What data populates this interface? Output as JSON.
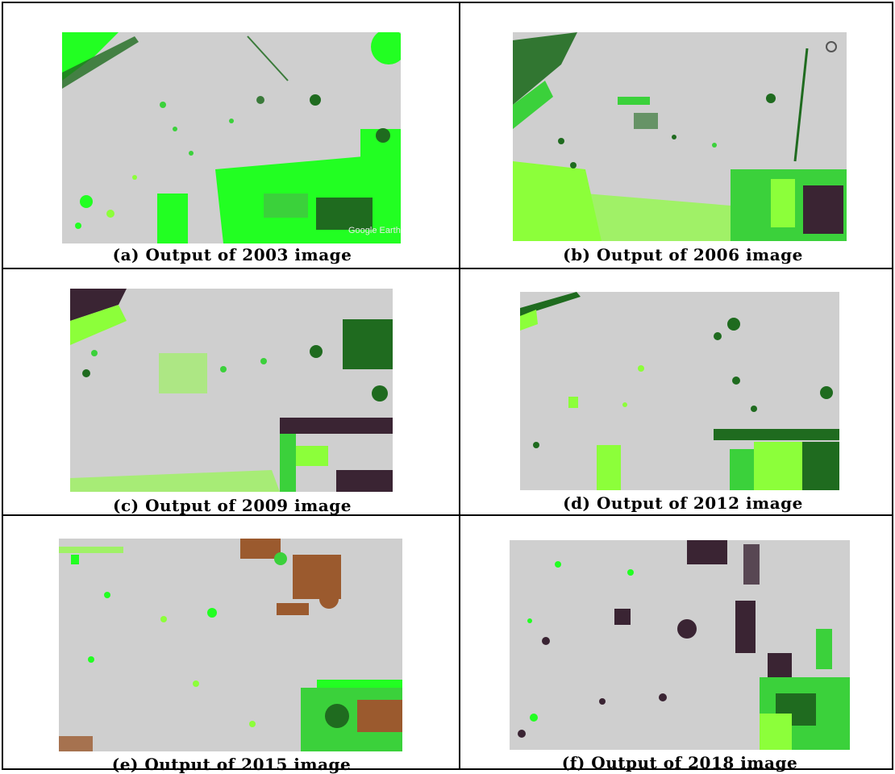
{
  "panels": [
    {
      "caption": "(a) Output of 2003 image",
      "watermark": "Google Earth"
    },
    {
      "caption": "(b) Output of 2006 image"
    },
    {
      "caption": "(c) Output of 2009 image"
    },
    {
      "caption": "(d) Output of 2012 image"
    },
    {
      "caption": "(e) Output of 2015 image"
    },
    {
      "caption": "(f) Output of 2018 image"
    }
  ],
  "colors": {
    "background_gray": "#cfcfcf",
    "bright_green": "#22ff22",
    "light_green": "#8cff3a",
    "dark_green": "#1f6b1f",
    "mid_green": "#3bd13b",
    "dark_purple": "#3a2433",
    "brown": "#9b5a2e"
  }
}
